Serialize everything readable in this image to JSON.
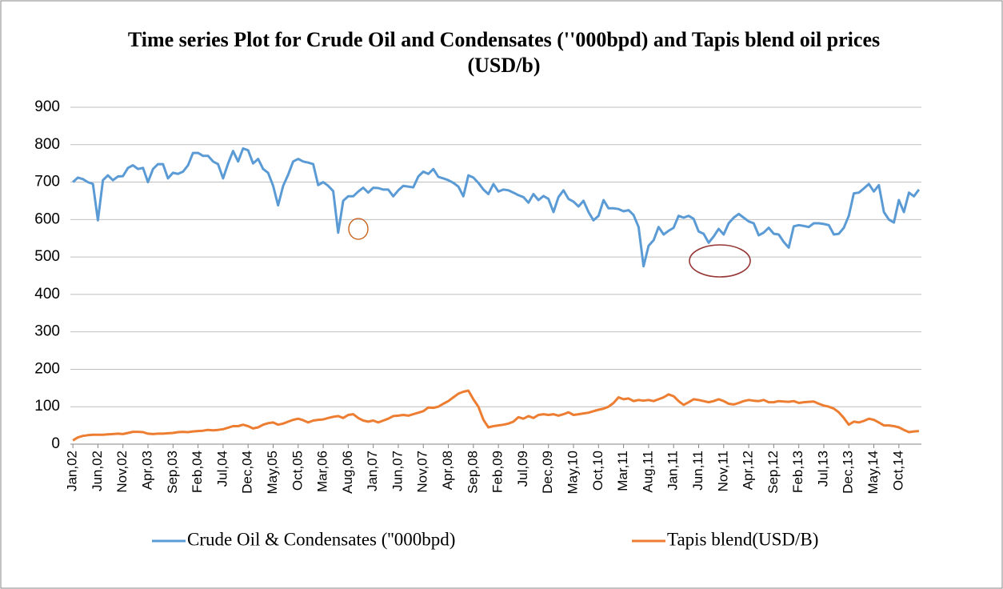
{
  "chart_data": {
    "type": "line",
    "title": "Time series Plot for Crude Oil and Condensates (''000bpd) and Tapis blend oil prices (USD/b)",
    "categories": [
      "Jan,02",
      null,
      null,
      null,
      null,
      "Jun,02",
      null,
      null,
      null,
      null,
      "Nov,02",
      null,
      null,
      null,
      null,
      "Apr,03",
      null,
      null,
      null,
      null,
      "Sep,03",
      null,
      null,
      null,
      null,
      "Feb,04",
      null,
      null,
      null,
      null,
      "Jul,04",
      null,
      null,
      null,
      null,
      "Dec,04",
      null,
      null,
      null,
      null,
      "May,05",
      null,
      null,
      null,
      null,
      "Oct,05",
      null,
      null,
      null,
      null,
      "Mar,06",
      null,
      null,
      null,
      null,
      "Aug,06",
      null,
      null,
      null,
      null,
      "Jan,07",
      null,
      null,
      null,
      null,
      "Jun,07",
      null,
      null,
      null,
      null,
      "Nov,07",
      null,
      null,
      null,
      null,
      "Apr,08",
      null,
      null,
      null,
      null,
      "Sep,08",
      null,
      null,
      null,
      null,
      "Feb,09",
      null,
      null,
      null,
      null,
      "Jul,09",
      null,
      null,
      null,
      null,
      "Dec,09",
      null,
      null,
      null,
      null,
      "May,10",
      null,
      null,
      null,
      null,
      "Oct,10",
      null,
      null,
      null,
      null,
      "Mar,11",
      null,
      null,
      null,
      null,
      "Aug,11",
      null,
      null,
      null,
      null,
      "Jan,11",
      null,
      null,
      null,
      null,
      "Jun,11",
      null,
      null,
      null,
      null,
      "Nov,11",
      null,
      null,
      null,
      null,
      "Apr,12",
      null,
      null,
      null,
      null,
      "Sep,12",
      null,
      null,
      null,
      null,
      "Feb,13",
      null,
      null,
      null,
      null,
      "Jul,13",
      null,
      null,
      null,
      null,
      "Dec,13",
      null,
      null,
      null,
      null,
      "May,14",
      null,
      null,
      null,
      null,
      "Oct,14",
      null,
      null,
      null,
      null
    ],
    "series": [
      {
        "name": "Crude Oil & Condensates (''000bpd)",
        "color": "#5b9bd5",
        "values": [
          700,
          712,
          708,
          700,
          695,
          598,
          705,
          718,
          705,
          715,
          716,
          738,
          745,
          735,
          738,
          700,
          735,
          748,
          748,
          710,
          725,
          722,
          728,
          745,
          778,
          778,
          770,
          770,
          755,
          748,
          710,
          750,
          783,
          755,
          790,
          785,
          750,
          762,
          735,
          725,
          690,
          638,
          690,
          720,
          755,
          762,
          755,
          752,
          748,
          692,
          700,
          690,
          676,
          565,
          650,
          662,
          662,
          675,
          685,
          672,
          685,
          684,
          680,
          680,
          662,
          678,
          690,
          688,
          686,
          715,
          728,
          722,
          735,
          714,
          710,
          705,
          698,
          688,
          662,
          718,
          712,
          698,
          680,
          668,
          695,
          675,
          680,
          678,
          672,
          665,
          660,
          645,
          668,
          652,
          663,
          655,
          620,
          660,
          678,
          655,
          648,
          635,
          650,
          620,
          598,
          610,
          652,
          630,
          630,
          628,
          622,
          625,
          612,
          580,
          475,
          530,
          545,
          580,
          560,
          570,
          578,
          610,
          605,
          610,
          602,
          568,
          562,
          538,
          555,
          575,
          560,
          590,
          605,
          615,
          605,
          595,
          590,
          558,
          565,
          578,
          562,
          560,
          540,
          525,
          582,
          585,
          583,
          580,
          590,
          590,
          588,
          585,
          560,
          562,
          578,
          610,
          670,
          672,
          683,
          695,
          675,
          692,
          620,
          600,
          592,
          652,
          620,
          672,
          662,
          680
        ]
      },
      {
        "name": "Tapis blend(USD/B)",
        "color": "#ed7d31",
        "values": [
          10,
          18,
          22,
          24,
          25,
          25,
          25,
          26,
          27,
          28,
          27,
          30,
          33,
          33,
          32,
          28,
          27,
          28,
          28,
          29,
          30,
          32,
          33,
          32,
          34,
          35,
          36,
          38,
          37,
          38,
          40,
          44,
          48,
          48,
          52,
          48,
          42,
          45,
          52,
          56,
          58,
          52,
          55,
          60,
          65,
          68,
          64,
          58,
          63,
          65,
          66,
          70,
          73,
          75,
          70,
          78,
          80,
          70,
          63,
          60,
          63,
          58,
          63,
          68,
          75,
          76,
          78,
          76,
          80,
          84,
          88,
          98,
          97,
          100,
          108,
          115,
          125,
          135,
          140,
          143,
          120,
          100,
          65,
          45,
          48,
          50,
          52,
          55,
          60,
          72,
          68,
          75,
          70,
          78,
          80,
          78,
          80,
          76,
          80,
          85,
          78,
          80,
          82,
          84,
          88,
          92,
          95,
          100,
          110,
          125,
          120,
          122,
          115,
          118,
          116,
          118,
          115,
          120,
          125,
          133,
          128,
          115,
          105,
          112,
          120,
          118,
          115,
          112,
          115,
          120,
          115,
          108,
          106,
          110,
          115,
          118,
          116,
          115,
          118,
          112,
          112,
          115,
          114,
          113,
          115,
          110,
          112,
          113,
          114,
          108,
          103,
          100,
          95,
          85,
          70,
          52,
          60,
          58,
          62,
          68,
          65,
          58,
          50,
          50,
          48,
          45,
          38,
          32,
          34,
          35
        ]
      }
    ],
    "ylim": [
      0,
      900
    ],
    "yticks": [
      0,
      100,
      200,
      300,
      400,
      500,
      600,
      700,
      800,
      900
    ],
    "grid": true,
    "legend": "bottom"
  }
}
